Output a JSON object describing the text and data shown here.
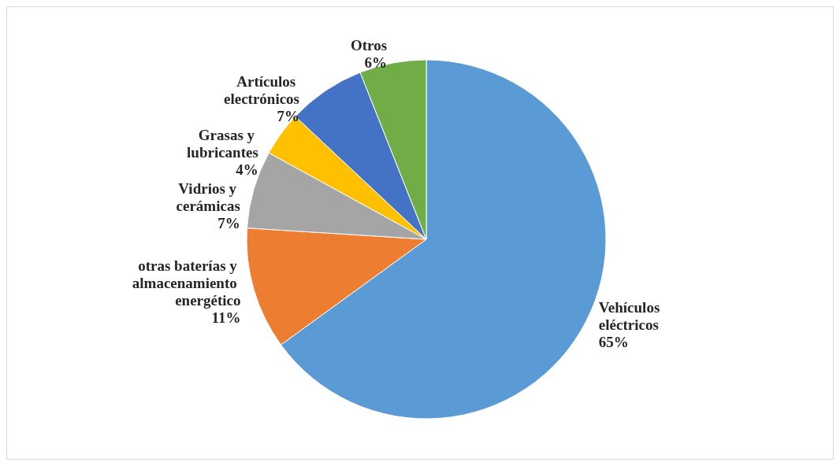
{
  "chart_data": {
    "type": "pie",
    "categories": [
      "Vehículos eléctricos",
      "otras baterías y almacenamiento energético",
      "Vidrios y cerámicas",
      "Grasas y lubricantes",
      "Artículos electrónicos",
      "Otros"
    ],
    "values": [
      65,
      11,
      7,
      4,
      7,
      6
    ],
    "value_labels": [
      "65%",
      "11%",
      "7%",
      "4%",
      "7%",
      "6%"
    ],
    "colors": [
      "#5b9bd5",
      "#ed7d31",
      "#a5a5a5",
      "#ffc000",
      "#4472c4",
      "#70ad47"
    ],
    "legend": false
  }
}
